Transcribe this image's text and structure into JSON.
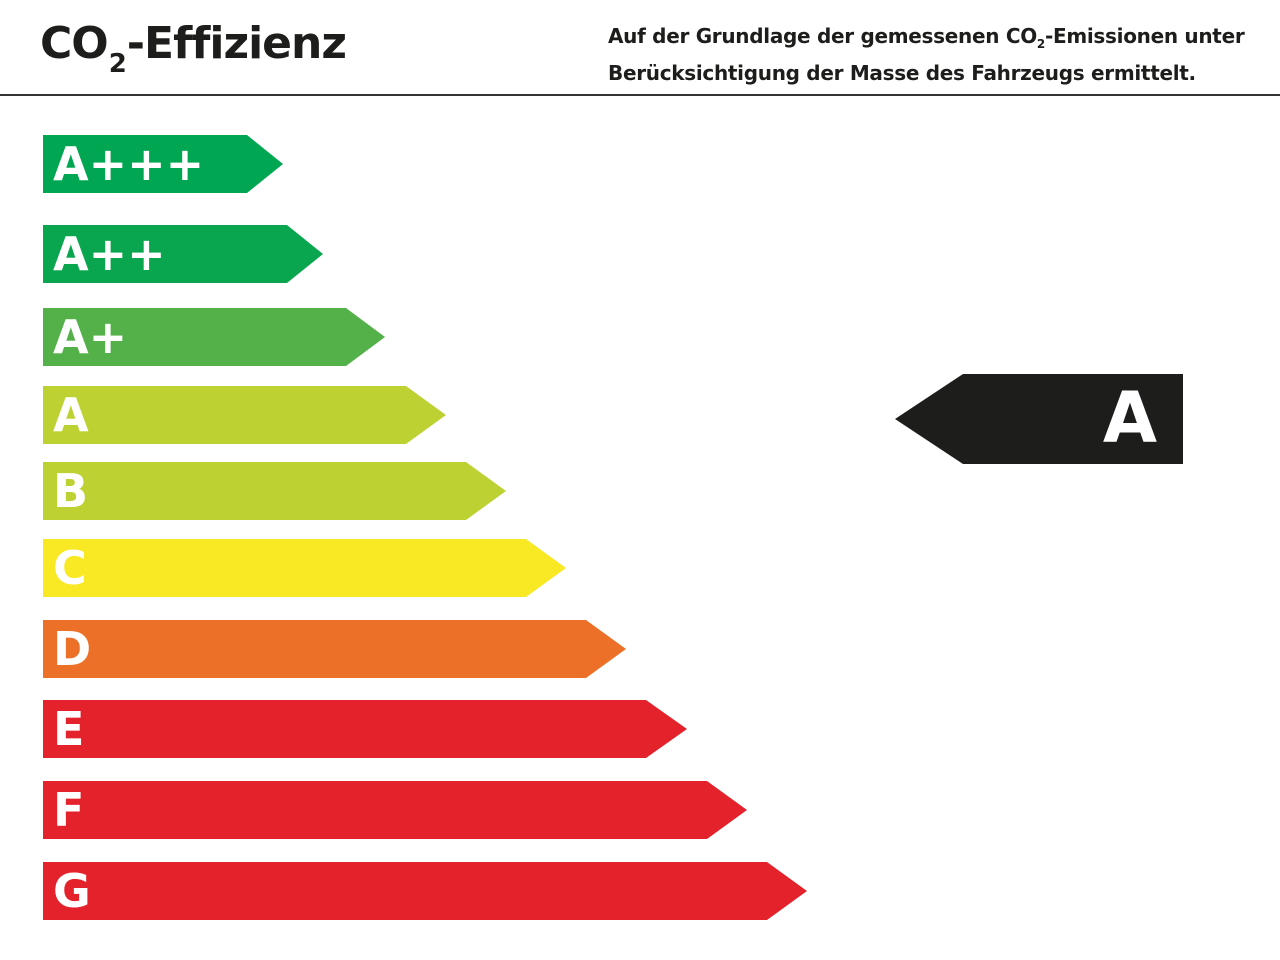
{
  "header": {
    "title_main": "CO",
    "title_sub": "2",
    "title_rest": "-Effizienz",
    "desc_line1_a": "Auf der Grundlage der gemessenen CO",
    "desc_line1_sub": "2",
    "desc_line1_b": "-Emissionen unter",
    "desc_line2": "Berücksichtigung der Masse des Fahrzeugs ermittelt."
  },
  "classes": [
    {
      "label": "A+++",
      "color": "#00a651"
    },
    {
      "label": "A++",
      "color": "#0aa64f"
    },
    {
      "label": "A+",
      "color": "#54b14a"
    },
    {
      "label": "A",
      "color": "#bdd133"
    },
    {
      "label": "B",
      "color": "#bdd133"
    },
    {
      "label": "C",
      "color": "#f9e925"
    },
    {
      "label": "D",
      "color": "#ec7028"
    },
    {
      "label": "E",
      "color": "#e3222b"
    },
    {
      "label": "F",
      "color": "#e3222b"
    },
    {
      "label": "G",
      "color": "#e3222b"
    }
  ],
  "indicator": {
    "label": "A",
    "color": "#1d1d1b"
  }
}
